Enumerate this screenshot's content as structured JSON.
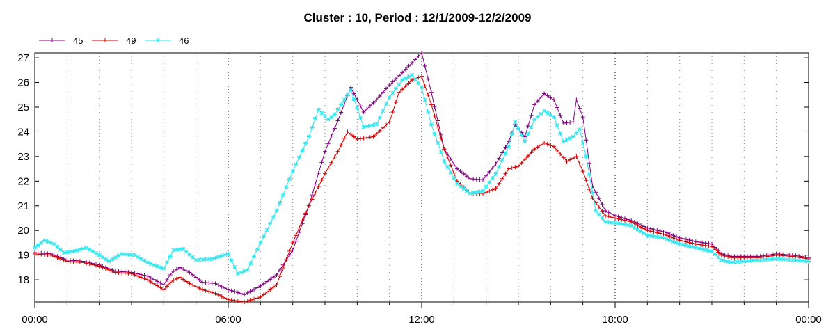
{
  "chart_data": {
    "type": "line",
    "title": "Cluster : 10, Period : 12/1/2009-12/2/2009",
    "xlabel": "",
    "ylabel": "",
    "x_ticks": [
      "00:00",
      "06:00",
      "12:00",
      "18:00",
      "00:00"
    ],
    "x_range_hours": [
      0,
      24
    ],
    "ylim": [
      17.1,
      27.2
    ],
    "y_ticks": [
      18,
      19,
      20,
      21,
      22,
      23,
      24,
      25,
      26,
      27
    ],
    "grid": "vertical dotted lines at every hour, darker dotted lines at 6-hour marks",
    "legend": "top-left, horizontal",
    "series": [
      {
        "name": "45",
        "color": "#800080",
        "marker": "+",
        "points": [
          [
            0,
            19.1
          ],
          [
            0.5,
            19.05
          ],
          [
            1,
            18.8
          ],
          [
            1.5,
            18.75
          ],
          [
            2,
            18.6
          ],
          [
            2.5,
            18.35
          ],
          [
            3,
            18.3
          ],
          [
            3.5,
            18.15
          ],
          [
            4,
            17.8
          ],
          [
            4.25,
            18.3
          ],
          [
            4.5,
            18.5
          ],
          [
            4.8,
            18.3
          ],
          [
            5.2,
            17.9
          ],
          [
            5.6,
            17.85
          ],
          [
            6,
            17.6
          ],
          [
            6.5,
            17.4
          ],
          [
            7,
            17.75
          ],
          [
            7.5,
            18.2
          ],
          [
            8,
            19.2
          ],
          [
            8.5,
            21
          ],
          [
            9,
            23.2
          ],
          [
            9.4,
            24.45
          ],
          [
            9.8,
            25.8
          ],
          [
            10.2,
            24.8
          ],
          [
            10.6,
            25.3
          ],
          [
            11,
            25.9
          ],
          [
            11.4,
            26.4
          ],
          [
            11.7,
            26.8
          ],
          [
            12,
            27.2
          ],
          [
            12.3,
            25.6
          ],
          [
            12.7,
            23.3
          ],
          [
            13.1,
            22.5
          ],
          [
            13.5,
            22.1
          ],
          [
            13.9,
            22.05
          ],
          [
            14.3,
            22.7
          ],
          [
            14.7,
            23.6
          ],
          [
            14.9,
            24.3
          ],
          [
            15.2,
            23.8
          ],
          [
            15.5,
            25.1
          ],
          [
            15.8,
            25.55
          ],
          [
            16.1,
            25.3
          ],
          [
            16.4,
            24.35
          ],
          [
            16.7,
            24.4
          ],
          [
            16.8,
            25.3
          ],
          [
            17,
            24.6
          ],
          [
            17.3,
            21.8
          ],
          [
            17.7,
            20.8
          ],
          [
            18,
            20.6
          ],
          [
            18.5,
            20.4
          ],
          [
            19,
            20.1
          ],
          [
            19.5,
            19.95
          ],
          [
            20,
            19.7
          ],
          [
            20.5,
            19.55
          ],
          [
            21,
            19.45
          ],
          [
            21.3,
            19.05
          ],
          [
            21.6,
            18.95
          ],
          [
            22,
            18.95
          ],
          [
            22.5,
            18.95
          ],
          [
            23,
            19.05
          ],
          [
            23.5,
            19
          ],
          [
            24,
            18.9
          ]
        ]
      },
      {
        "name": "49",
        "color": "#d00000",
        "marker": "+",
        "points": [
          [
            0,
            19.05
          ],
          [
            0.5,
            19.0
          ],
          [
            1,
            18.75
          ],
          [
            1.5,
            18.7
          ],
          [
            2,
            18.55
          ],
          [
            2.5,
            18.3
          ],
          [
            3,
            18.25
          ],
          [
            3.5,
            18.0
          ],
          [
            4,
            17.6
          ],
          [
            4.25,
            17.95
          ],
          [
            4.5,
            18.1
          ],
          [
            4.8,
            17.85
          ],
          [
            5.2,
            17.6
          ],
          [
            5.6,
            17.45
          ],
          [
            6,
            17.2
          ],
          [
            6.5,
            17.1
          ],
          [
            7,
            17.3
          ],
          [
            7.5,
            17.8
          ],
          [
            8,
            19.5
          ],
          [
            8.5,
            21
          ],
          [
            9,
            22.3
          ],
          [
            9.4,
            23.2
          ],
          [
            9.7,
            24
          ],
          [
            10,
            23.7
          ],
          [
            10.5,
            23.8
          ],
          [
            11,
            24.4
          ],
          [
            11.3,
            25.6
          ],
          [
            11.7,
            26.1
          ],
          [
            12,
            26.25
          ],
          [
            12.3,
            25.1
          ],
          [
            12.7,
            23.3
          ],
          [
            13.1,
            22.0
          ],
          [
            13.5,
            21.5
          ],
          [
            13.9,
            21.5
          ],
          [
            14.3,
            21.7
          ],
          [
            14.7,
            22.5
          ],
          [
            15,
            22.6
          ],
          [
            15.5,
            23.3
          ],
          [
            15.8,
            23.55
          ],
          [
            16.1,
            23.4
          ],
          [
            16.5,
            22.8
          ],
          [
            16.8,
            23.0
          ],
          [
            17,
            22.4
          ],
          [
            17.3,
            21.3
          ],
          [
            17.7,
            20.6
          ],
          [
            18,
            20.5
          ],
          [
            18.5,
            20.35
          ],
          [
            19,
            20.0
          ],
          [
            19.5,
            19.85
          ],
          [
            20,
            19.6
          ],
          [
            20.5,
            19.45
          ],
          [
            21,
            19.35
          ],
          [
            21.3,
            19.0
          ],
          [
            21.6,
            18.9
          ],
          [
            22,
            18.9
          ],
          [
            22.5,
            18.9
          ],
          [
            23,
            19.0
          ],
          [
            23.5,
            18.95
          ],
          [
            24,
            18.85
          ]
        ]
      },
      {
        "name": "46",
        "color": "#33e6ee",
        "marker": "*",
        "points": [
          [
            0,
            19.3
          ],
          [
            0.3,
            19.6
          ],
          [
            0.6,
            19.45
          ],
          [
            0.9,
            19.1
          ],
          [
            1.2,
            19.15
          ],
          [
            1.6,
            19.3
          ],
          [
            2.0,
            19.0
          ],
          [
            2.3,
            18.75
          ],
          [
            2.7,
            19.05
          ],
          [
            3.1,
            19.0
          ],
          [
            3.5,
            18.7
          ],
          [
            4.0,
            18.45
          ],
          [
            4.3,
            19.2
          ],
          [
            4.6,
            19.25
          ],
          [
            5.0,
            18.8
          ],
          [
            5.5,
            18.85
          ],
          [
            6.0,
            19.05
          ],
          [
            6.3,
            18.25
          ],
          [
            6.6,
            18.4
          ],
          [
            7,
            19.5
          ],
          [
            7.5,
            20.8
          ],
          [
            8,
            22.4
          ],
          [
            8.5,
            23.8
          ],
          [
            8.8,
            24.9
          ],
          [
            9.1,
            24.5
          ],
          [
            9.3,
            24.7
          ],
          [
            9.8,
            25.7
          ],
          [
            10.2,
            24.2
          ],
          [
            10.6,
            24.3
          ],
          [
            11,
            25.4
          ],
          [
            11.4,
            26.1
          ],
          [
            11.7,
            26.3
          ],
          [
            12,
            25.8
          ],
          [
            12.3,
            24.3
          ],
          [
            12.7,
            22.8
          ],
          [
            13.1,
            21.9
          ],
          [
            13.5,
            21.5
          ],
          [
            13.9,
            21.6
          ],
          [
            14.3,
            22.3
          ],
          [
            14.7,
            23.4
          ],
          [
            14.9,
            24.4
          ],
          [
            15.2,
            23.6
          ],
          [
            15.5,
            24.5
          ],
          [
            15.8,
            24.85
          ],
          [
            16.1,
            24.6
          ],
          [
            16.4,
            23.6
          ],
          [
            16.7,
            23.8
          ],
          [
            16.9,
            24.1
          ],
          [
            17.1,
            23.0
          ],
          [
            17.4,
            20.8
          ],
          [
            17.7,
            20.35
          ],
          [
            18,
            20.3
          ],
          [
            18.5,
            20.2
          ],
          [
            19,
            19.8
          ],
          [
            19.5,
            19.7
          ],
          [
            20,
            19.45
          ],
          [
            20.5,
            19.3
          ],
          [
            21,
            19.15
          ],
          [
            21.3,
            18.8
          ],
          [
            21.6,
            18.7
          ],
          [
            22,
            18.75
          ],
          [
            22.5,
            18.8
          ],
          [
            23,
            18.85
          ],
          [
            23.5,
            18.8
          ],
          [
            24,
            18.75
          ]
        ]
      }
    ]
  }
}
